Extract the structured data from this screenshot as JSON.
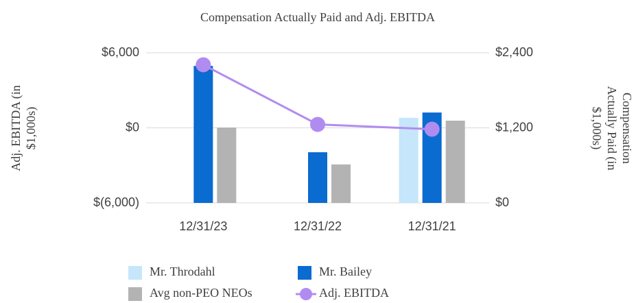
{
  "chart_data": {
    "type": "bar",
    "title": "Compensation Actually Paid and Adj. EBITDA",
    "categories": [
      "12/31/23",
      "12/31/22",
      "12/31/21"
    ],
    "series": [
      {
        "name": "Mr. Throdahl",
        "color": "#c5e6fb",
        "axis": "y2",
        "type": "bar",
        "values": [
          null,
          null,
          1360
        ]
      },
      {
        "name": "Mr. Bailey",
        "color": "#0a6bd0",
        "axis": "y2",
        "type": "bar",
        "values": [
          2190,
          810,
          1445
        ]
      },
      {
        "name": "Avg non-PEO NEOs",
        "color": "#b3b3b3",
        "axis": "y2",
        "type": "bar",
        "values": [
          1205,
          615,
          1315
        ]
      },
      {
        "name": "Adj. EBITDA",
        "color": "#b18cf0",
        "axis": "y",
        "type": "line",
        "values": [
          5040,
          275,
          -110
        ]
      }
    ],
    "ylabel": [
      "Adj. EBITDA (in",
      "$1,000s)"
    ],
    "y2label": [
      "Compensation",
      "Actually Paid (in",
      "$1,000s)"
    ],
    "ylim": [
      -6000,
      6000
    ],
    "yticks": [
      {
        "value": -6000,
        "label": "$(6,000)"
      },
      {
        "value": 0,
        "label": "$0"
      },
      {
        "value": 6000,
        "label": "$6,000"
      }
    ],
    "y2lim": [
      0,
      2400
    ],
    "y2ticks": [
      {
        "value": 0,
        "label": "$0"
      },
      {
        "value": 1200,
        "label": "$1,200"
      },
      {
        "value": 2400,
        "label": "$2,400"
      }
    ],
    "grid": true,
    "legend": "bottom"
  }
}
